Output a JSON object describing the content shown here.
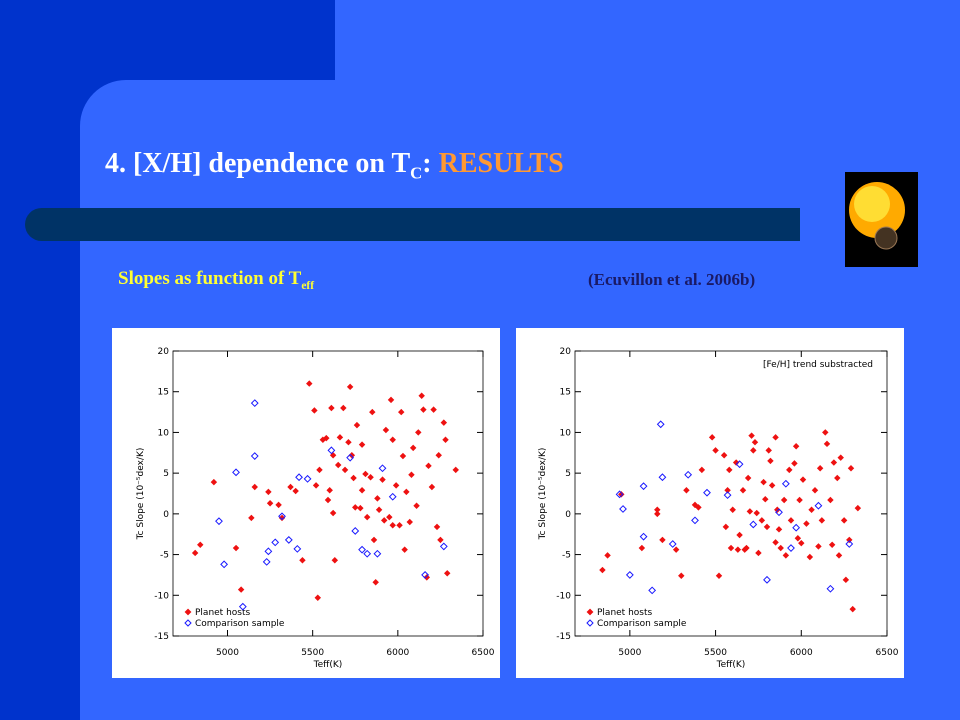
{
  "slide": {
    "title": "4. [X/H] dependence on T",
    "title_sub": "C",
    "title_colon": ":",
    "title_highlight": "RESULTS",
    "subtitle": "Slopes as function of T",
    "subtitle_sub": "eff",
    "citation": "(Ecuvillon et al. 2006b)"
  },
  "chart_data": [
    {
      "type": "scatter",
      "xlabel": "Teff(K)",
      "ylabel": "Tc Slope (10⁻⁵dex/K)",
      "xlim": [
        4680,
        6500
      ],
      "ylim": [
        -15,
        20
      ],
      "xticks": [
        5000,
        5500,
        6000,
        6500
      ],
      "yticks": [
        -15,
        -10,
        -5,
        0,
        5,
        10,
        15,
        20
      ],
      "legend": "lower left",
      "series": [
        {
          "name": "Planet hosts",
          "color": "#ee1111",
          "marker": "filled",
          "x": [
            4810,
            4840,
            4920,
            5050,
            5080,
            5140,
            5160,
            5240,
            5250,
            5300,
            5320,
            5370,
            5400,
            5440,
            5480,
            5510,
            5530,
            5520,
            5540,
            5560,
            5580,
            5590,
            5600,
            5610,
            5620,
            5620,
            5630,
            5650,
            5660,
            5680,
            5690,
            5710,
            5720,
            5730,
            5740,
            5750,
            5760,
            5780,
            5790,
            5790,
            5810,
            5820,
            5840,
            5850,
            5860,
            5870,
            5880,
            5890,
            5910,
            5920,
            5930,
            5950,
            5960,
            5970,
            5970,
            5990,
            6010,
            6020,
            6030,
            6040,
            6050,
            6070,
            6080,
            6090,
            6110,
            6120,
            6140,
            6150,
            6170,
            6180,
            6200,
            6210,
            6230,
            6240,
            6250,
            6270,
            6280,
            6290,
            6340
          ],
          "values": [
            -4.8,
            -3.8,
            3.9,
            -4.2,
            -9.3,
            -0.5,
            3.3,
            2.7,
            1.3,
            1.1,
            -0.5,
            3.3,
            2.8,
            -5.7,
            16.0,
            12.7,
            -10.3,
            3.5,
            5.4,
            9.1,
            9.3,
            1.7,
            2.9,
            13.0,
            7.2,
            0.1,
            -5.7,
            6.0,
            9.4,
            13.0,
            5.4,
            8.8,
            15.6,
            7.2,
            4.4,
            0.8,
            10.9,
            0.7,
            8.5,
            2.9,
            4.9,
            -0.4,
            4.5,
            12.5,
            -3.2,
            -8.4,
            1.9,
            0.5,
            4.2,
            -0.8,
            10.3,
            -0.4,
            14.0,
            9.1,
            -1.4,
            3.5,
            -1.4,
            12.5,
            7.1,
            -4.4,
            2.7,
            -1.0,
            4.8,
            8.1,
            1.0,
            10.0,
            14.5,
            12.8,
            -7.8,
            5.9,
            3.3,
            12.8,
            -1.6,
            7.2,
            -3.2,
            11.2,
            9.1,
            -7.3,
            5.4
          ]
        },
        {
          "name": "Comparison sample",
          "color": "#1a1aff",
          "marker": "open",
          "x": [
            4950,
            4980,
            5050,
            5090,
            5160,
            5160,
            5240,
            5230,
            5280,
            5320,
            5360,
            5410,
            5420,
            5470,
            5610,
            5720,
            5750,
            5790,
            5820,
            5880,
            5910,
            5970,
            6160,
            6270
          ],
          "values": [
            -0.9,
            -6.2,
            5.1,
            -11.4,
            13.6,
            7.1,
            -4.6,
            -5.9,
            -3.5,
            -0.3,
            -3.2,
            -4.3,
            4.5,
            4.3,
            7.8,
            6.9,
            -2.1,
            -4.4,
            -4.9,
            -4.9,
            5.6,
            2.1,
            -7.5,
            -4.0
          ]
        }
      ]
    },
    {
      "type": "scatter",
      "xlabel": "Teff(K)",
      "ylabel": "Tc Slope (10⁻⁵dex/K)",
      "annotation": "[Fe/H] trend substracted",
      "xlim": [
        4680,
        6500
      ],
      "ylim": [
        -15,
        20
      ],
      "xticks": [
        5000,
        5500,
        6000,
        6500
      ],
      "yticks": [
        -15,
        -10,
        -5,
        0,
        5,
        10,
        15,
        20
      ],
      "legend": "lower left",
      "series": [
        {
          "name": "Planet hosts",
          "color": "#ee1111",
          "marker": "filled",
          "x": [
            4840,
            4870,
            4950,
            5070,
            5160,
            5160,
            5190,
            5270,
            5300,
            5330,
            5380,
            5400,
            5420,
            5480,
            5500,
            5520,
            5550,
            5560,
            5570,
            5580,
            5590,
            5600,
            5620,
            5630,
            5640,
            5660,
            5670,
            5680,
            5690,
            5700,
            5710,
            5720,
            5730,
            5740,
            5750,
            5770,
            5780,
            5790,
            5800,
            5810,
            5820,
            5830,
            5850,
            5850,
            5860,
            5870,
            5880,
            5900,
            5910,
            5930,
            5940,
            5960,
            5970,
            5980,
            5990,
            6000,
            6010,
            6030,
            6050,
            6060,
            6080,
            6100,
            6110,
            6120,
            6140,
            6150,
            6170,
            6180,
            6190,
            6210,
            6220,
            6230,
            6250,
            6260,
            6280,
            6290,
            6300,
            6330
          ],
          "values": [
            -6.9,
            -5.1,
            2.4,
            -4.2,
            0.5,
            0.0,
            -3.2,
            -4.4,
            -7.6,
            2.9,
            1.1,
            0.8,
            5.4,
            9.4,
            7.8,
            -7.6,
            7.2,
            -1.6,
            2.9,
            5.4,
            -4.2,
            0.5,
            6.3,
            -4.4,
            -2.6,
            2.9,
            -4.4,
            -4.2,
            4.4,
            0.3,
            9.6,
            7.8,
            8.8,
            0.1,
            -4.8,
            -0.8,
            3.9,
            1.8,
            -1.6,
            7.8,
            6.5,
            3.5,
            -3.5,
            9.4,
            0.5,
            -1.9,
            -4.2,
            1.7,
            -5.1,
            5.4,
            -0.8,
            6.2,
            8.3,
            -3.0,
            1.7,
            -3.6,
            4.2,
            -1.2,
            -5.3,
            0.5,
            2.9,
            -4.0,
            5.6,
            -0.8,
            10.0,
            8.6,
            1.7,
            -3.8,
            6.3,
            4.4,
            -5.1,
            6.9,
            -0.8,
            -8.1,
            -3.2,
            5.6,
            -11.7,
            0.7
          ]
        },
        {
          "name": "Comparison sample",
          "color": "#1a1aff",
          "marker": "open",
          "x": [
            4940,
            4960,
            5000,
            5080,
            5080,
            5130,
            5180,
            5190,
            5250,
            5340,
            5380,
            5450,
            5570,
            5640,
            5720,
            5800,
            5870,
            5910,
            5940,
            5970,
            6100,
            6170,
            6280
          ],
          "values": [
            2.4,
            0.6,
            -7.5,
            3.4,
            -2.8,
            -9.4,
            11.0,
            4.5,
            -3.7,
            4.8,
            -0.8,
            2.6,
            2.3,
            6.1,
            -1.3,
            -8.1,
            0.2,
            3.7,
            -4.2,
            -1.7,
            1.0,
            -9.2,
            -3.7
          ]
        }
      ]
    }
  ]
}
